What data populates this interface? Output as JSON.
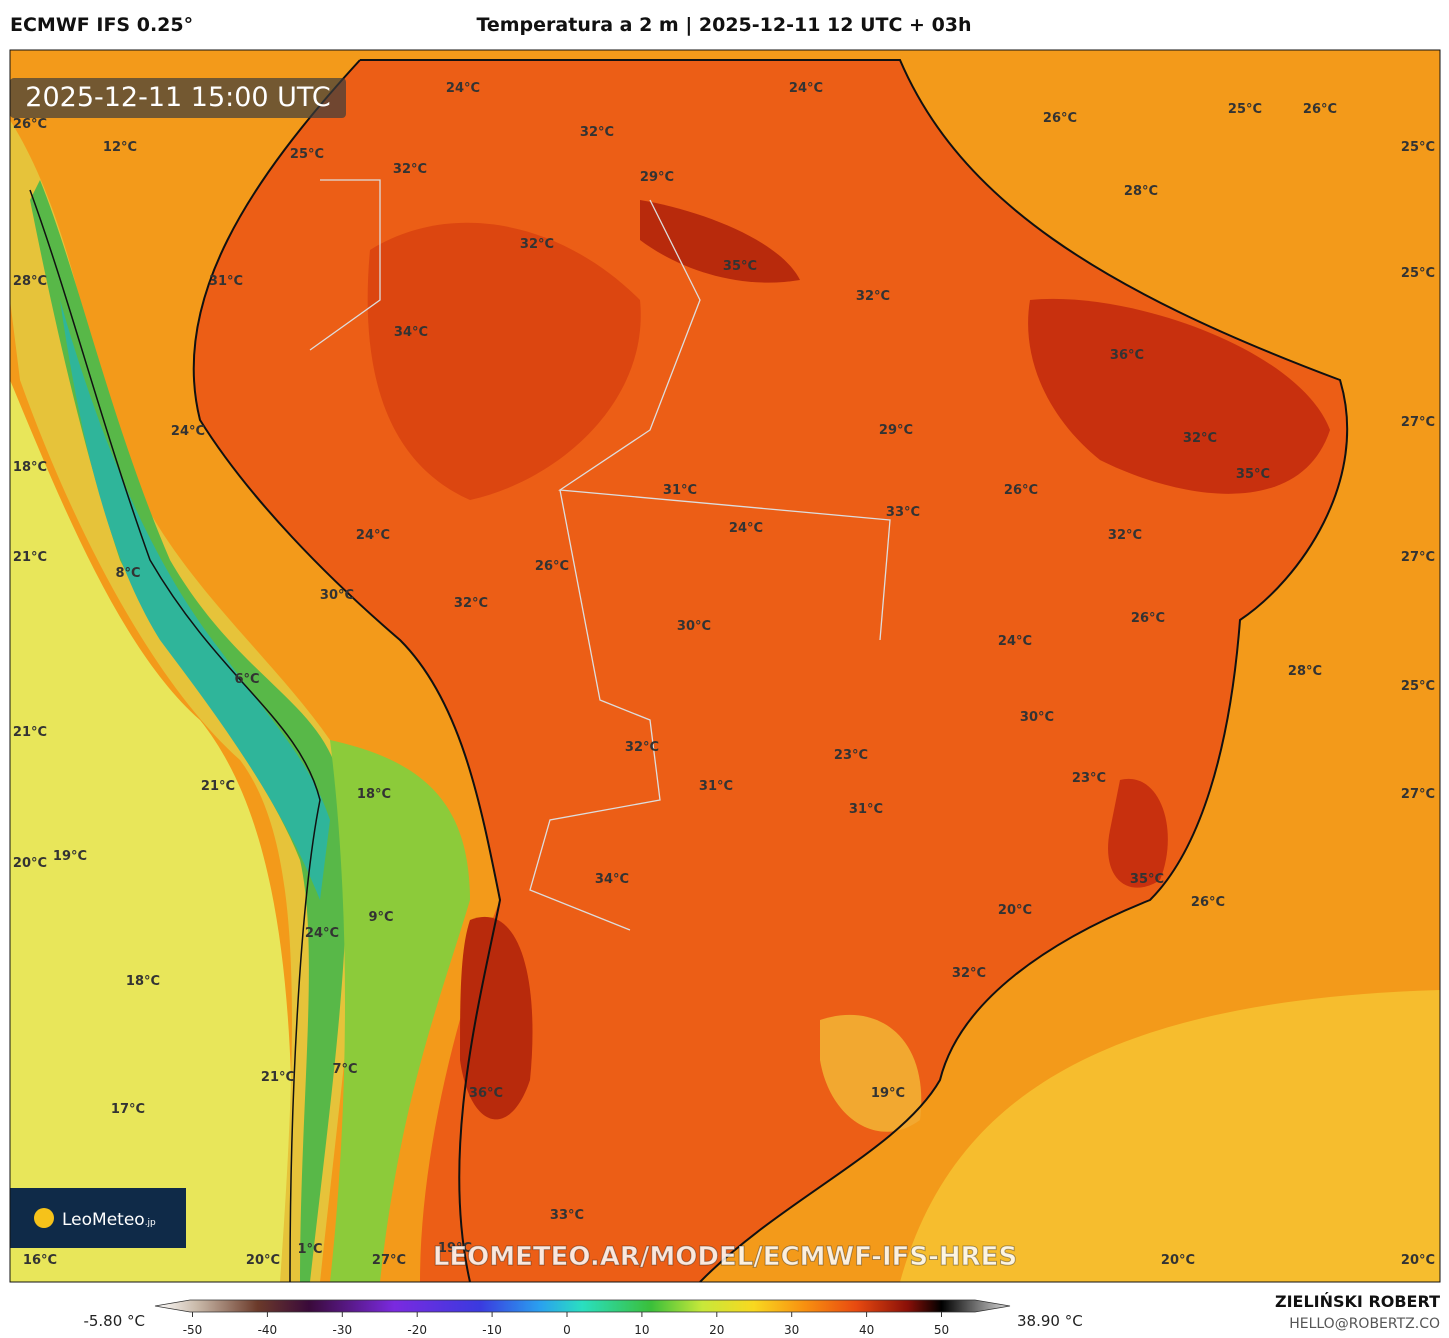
{
  "header": {
    "model": "ECMWF IFS 0.25°",
    "title": "Temperatura a 2 m | 2025-12-11 12 UTC + 03h"
  },
  "map": {
    "valid_time": "2025-12-11 15:00 UTC",
    "watermark": "LEOMETEO.AR/MODEL/ECMWF-IFS-HRES",
    "logo": "LeoMeteo",
    "logo_suffix": ".jp",
    "labels": [
      "24°C",
      "24°C",
      "26°C",
      "25°C",
      "26°C",
      "26°C",
      "12°C",
      "32°C",
      "25°C",
      "25°C",
      "32°C",
      "29°C",
      "28°C",
      "32°C",
      "35°C",
      "32°C",
      "31°C",
      "28°C",
      "25°C",
      "34°C",
      "36°C",
      "27°C",
      "24°C",
      "29°C",
      "32°C",
      "18°C",
      "35°C",
      "31°C",
      "26°C",
      "33°C",
      "24°C",
      "24°C",
      "32°C",
      "21°C",
      "27°C",
      "8°C",
      "26°C",
      "30°C",
      "32°C",
      "26°C",
      "30°C",
      "24°C",
      "28°C",
      "6°C",
      "25°C",
      "30°C",
      "21°C",
      "32°C",
      "23°C",
      "23°C",
      "31°C",
      "21°C",
      "18°C",
      "27°C",
      "31°C",
      "20°C",
      "19°C",
      "34°C",
      "35°C",
      "26°C",
      "20°C",
      "9°C",
      "24°C",
      "32°C",
      "18°C",
      "7°C",
      "21°C",
      "19°C",
      "36°C",
      "17°C",
      "33°C",
      "16°C",
      "20°C",
      "27°C",
      "20°C",
      "20°C",
      "1°C",
      "19°C"
    ]
  },
  "colorbar": {
    "min_label": "-5.80 °C",
    "max_label": "38.90 °C",
    "ticks": [
      -50,
      -40,
      -30,
      -20,
      -10,
      0,
      10,
      20,
      30,
      40,
      50
    ]
  },
  "footer": {
    "author": "ZIELIŃSKI ROBERT",
    "contact": "HELLO@ROBERTZ.CO"
  }
}
